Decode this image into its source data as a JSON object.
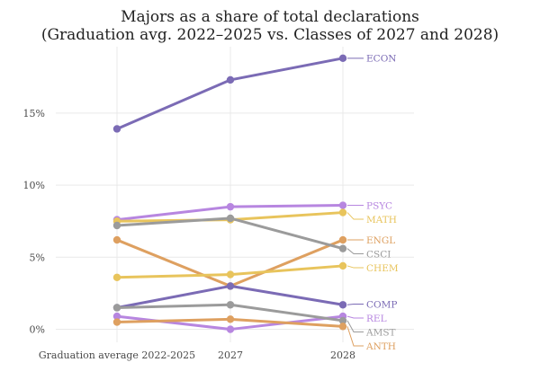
{
  "chart_data": {
    "type": "line",
    "title": "Majors as a share of total declarations",
    "subtitle": "(Graduation avg. 2022–2025 vs. Classes of 2027 and 2028)",
    "categories": [
      "Graduation average 2022-2025",
      "2027",
      "2028"
    ],
    "ylim": [
      -0.9,
      19.6
    ],
    "yticks": [
      {
        "value": 0,
        "label": "0%"
      },
      {
        "value": 5,
        "label": "5%"
      },
      {
        "value": 10,
        "label": "10%"
      },
      {
        "value": 15,
        "label": "15%"
      }
    ],
    "grid": true,
    "legend": "direct labels at right end of lines",
    "series": [
      {
        "name": "ECON",
        "color": "#7b6bb5",
        "values": [
          13.9,
          17.3,
          18.8
        ]
      },
      {
        "name": "PSYC",
        "color": "#b786e0",
        "values": [
          7.6,
          8.5,
          8.6
        ]
      },
      {
        "name": "MATH",
        "color": "#e8c45c",
        "values": [
          7.5,
          7.6,
          8.1
        ]
      },
      {
        "name": "ENGL",
        "color": "#dea060",
        "values": [
          6.2,
          3.0,
          6.2
        ]
      },
      {
        "name": "CSCI",
        "color": "#9b9b9b",
        "values": [
          7.2,
          7.7,
          5.6
        ]
      },
      {
        "name": "CHEM",
        "color": "#e8c45c",
        "values": [
          3.6,
          3.8,
          4.4
        ]
      },
      {
        "name": "COMP",
        "color": "#7b6bb5",
        "values": [
          1.5,
          3.0,
          1.7
        ]
      },
      {
        "name": "REL",
        "color": "#b786e0",
        "values": [
          0.9,
          0.0,
          0.9
        ]
      },
      {
        "name": "AMST",
        "color": "#9b9b9b",
        "values": [
          1.5,
          1.7,
          0.6
        ]
      },
      {
        "name": "ANTH",
        "color": "#dea060",
        "values": [
          0.5,
          0.7,
          0.2
        ]
      }
    ]
  }
}
